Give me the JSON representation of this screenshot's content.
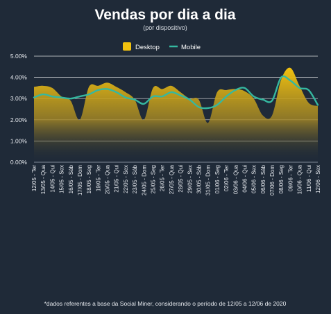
{
  "chart_data": {
    "type": "area",
    "title": "Vendas por dia a dia",
    "subtitle": "(por dispositivo)",
    "legend_position": "top-center",
    "footnote": "*dados referentes a base da Social Miner, considerando o período de 12/05 a 12/06 de 2020",
    "ylim": [
      0,
      5
    ],
    "yticks": [
      "0.00%",
      "1.00%",
      "2.00%",
      "3.00%",
      "4.00%",
      "5.00%"
    ],
    "grid": true,
    "categories": [
      "12/05 - Ter",
      "13/05 - Qua",
      "14/05 - Qui",
      "15/05 - Sex",
      "16/05 - Sáb",
      "17/05 - Dom",
      "18/05 - Seg",
      "19/05 - Ter",
      "20/05 - Qua",
      "21/05 - Qui",
      "22/05 - Sex",
      "23/05 - Sáb",
      "24/05 - Dom",
      "25/05 - Seg",
      "26/05 - Ter",
      "27/05 - Qua",
      "28/05 - Qui",
      "29/05 - Sex",
      "30/05 - Sáb",
      "31/05 - Dom",
      "01/06 - Seg",
      "02/06 - Ter",
      "03/06 - Qua",
      "04/06 - Qui",
      "05/06 - Sex",
      "06/06 - Sáb",
      "07/06 - Dom",
      "08/06 - Seg",
      "09/06 - Ter",
      "10/06 - Qua",
      "11/06 - Qui",
      "12/06 - Sex"
    ],
    "series": [
      {
        "name": "Desktop",
        "color": "#f2c20f",
        "values": [
          3.55,
          3.6,
          3.5,
          3.1,
          2.9,
          2.0,
          3.55,
          3.6,
          3.75,
          3.55,
          3.3,
          2.95,
          2.0,
          3.5,
          3.45,
          3.6,
          3.3,
          3.0,
          2.95,
          1.85,
          3.3,
          3.4,
          3.45,
          3.35,
          3.0,
          2.2,
          2.2,
          3.9,
          4.45,
          3.6,
          2.8,
          2.65
        ]
      },
      {
        "name": "Mobile",
        "color": "#35b8a0",
        "values": [
          3.05,
          3.2,
          3.1,
          3.05,
          3.0,
          3.1,
          3.2,
          3.4,
          3.45,
          3.3,
          3.05,
          2.95,
          2.75,
          3.1,
          3.1,
          3.3,
          3.15,
          2.95,
          2.6,
          2.55,
          2.7,
          3.1,
          3.4,
          3.5,
          3.1,
          2.95,
          2.9,
          4.0,
          3.85,
          3.5,
          3.4,
          2.7
        ]
      }
    ]
  }
}
